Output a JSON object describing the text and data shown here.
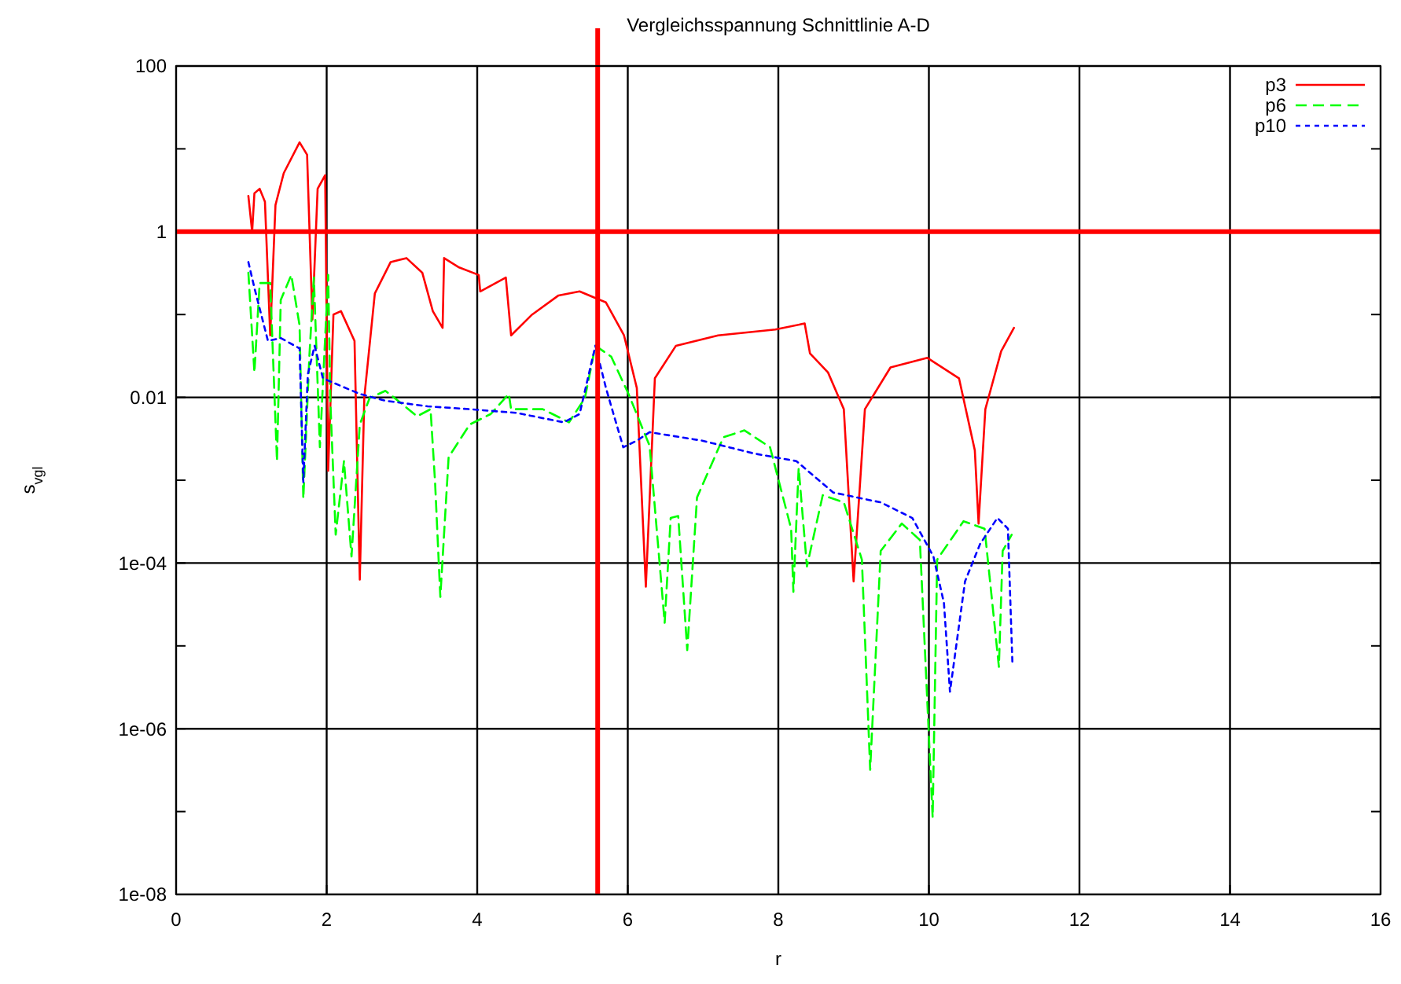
{
  "chart_data": {
    "type": "line",
    "title": "Vergleichsspannung Schnittlinie A-D",
    "xlabel": "r",
    "ylabel": "s$_{vgl}$",
    "log": "y",
    "grid": true,
    "legend": "top right",
    "xlim": [
      0,
      16
    ],
    "xticks": [
      0,
      2,
      4,
      6,
      8,
      10,
      12,
      14,
      16
    ],
    "ylim": [
      1e-08,
      100
    ],
    "yticks": [
      100,
      {
        "value": 10,
        "label": null
      },
      1,
      {
        "value": 0.1,
        "label": null
      },
      0.01,
      {
        "value": 0.001,
        "label": null
      },
      {
        "value": 0.0001,
        "label": "1e-04"
      },
      {
        "value": 1e-05,
        "label": null
      },
      {
        "value": 1e-06,
        "label": "1e-06"
      },
      {
        "value": 1e-07,
        "label": null
      },
      {
        "value": 1e-08,
        "label": "1e-08"
      }
    ],
    "ref_lines": [
      {
        "axis": "y",
        "value": 1,
        "color": "#ff0000"
      },
      {
        "axis": "x",
        "value": 5.6,
        "color": "#ff0000"
      }
    ],
    "series": [
      {
        "name": "p3",
        "color": "#ff0000",
        "line_style": "solid",
        "x": [
          0.96,
          1.01,
          1.04,
          1.11,
          1.18,
          1.25,
          1.32,
          1.43,
          1.64,
          1.74,
          1.81,
          1.88,
          1.98,
          2.02,
          2.09,
          2.19,
          2.37,
          2.44,
          2.5,
          2.64,
          2.85,
          3.06,
          3.27,
          3.41,
          3.54,
          3.56,
          3.76,
          4.02,
          4.04,
          4.38,
          4.45,
          4.73,
          5.08,
          5.36,
          5.71,
          5.95,
          6.12,
          6.24,
          6.36,
          6.64,
          7.2,
          7.96,
          8.35,
          8.42,
          8.66,
          8.87,
          9.0,
          9.15,
          9.49,
          9.98,
          10.4,
          10.61,
          10.66,
          10.75,
          10.96,
          11.13
        ],
        "values": [
          2.7,
          1.0,
          2.9,
          3.3,
          2.3,
          0.056,
          2.1,
          5.1,
          12,
          8.5,
          0.087,
          3.3,
          4.8,
          0.0013,
          0.1,
          0.11,
          0.048,
          6.3e-05,
          0.01,
          0.18,
          0.43,
          0.48,
          0.32,
          0.11,
          0.069,
          0.48,
          0.37,
          0.3,
          0.19,
          0.28,
          0.056,
          0.1,
          0.17,
          0.19,
          0.14,
          0.056,
          0.013,
          5.2e-05,
          0.017,
          0.042,
          0.056,
          0.066,
          0.078,
          0.034,
          0.02,
          0.0072,
          6e-05,
          0.0072,
          0.023,
          0.03,
          0.017,
          0.0023,
          0.0003,
          0.0072,
          0.036,
          0.069
        ]
      },
      {
        "name": "p6",
        "color": "#00ff00",
        "line_style": "dashed",
        "x": [
          0.96,
          1.04,
          1.11,
          1.25,
          1.34,
          1.39,
          1.53,
          1.64,
          1.69,
          1.77,
          1.83,
          1.91,
          2.02,
          2.05,
          2.12,
          2.23,
          2.33,
          2.44,
          2.57,
          2.78,
          2.99,
          3.2,
          3.38,
          3.44,
          3.51,
          3.62,
          3.9,
          4.18,
          4.42,
          4.45,
          4.87,
          5.22,
          5.43,
          5.57,
          5.78,
          6.01,
          6.29,
          6.49,
          6.57,
          6.67,
          6.79,
          6.92,
          7.27,
          7.55,
          7.89,
          8.17,
          8.2,
          8.27,
          8.38,
          8.59,
          8.87,
          9.11,
          9.22,
          9.36,
          9.64,
          9.88,
          10.05,
          10.11,
          10.46,
          10.74,
          10.93,
          10.98,
          11.1
        ],
        "values": [
          0.32,
          0.02,
          0.24,
          0.24,
          0.0017,
          0.15,
          0.3,
          0.074,
          0.0006,
          0.031,
          0.28,
          0.0025,
          0.3,
          0.0085,
          0.00022,
          0.0017,
          0.00012,
          0.0047,
          0.0098,
          0.012,
          0.0085,
          0.0059,
          0.0072,
          0.00095,
          3.9e-05,
          0.0019,
          0.0047,
          0.0063,
          0.011,
          0.0072,
          0.0072,
          0.005,
          0.0098,
          0.042,
          0.031,
          0.011,
          0.0026,
          1.9e-05,
          0.00035,
          0.00037,
          8.9e-06,
          0.00062,
          0.0033,
          0.004,
          0.0025,
          0.00026,
          4.5e-05,
          0.0014,
          9.1e-05,
          0.00066,
          0.00054,
          0.00011,
          3.2e-07,
          0.00014,
          0.0003,
          0.00019,
          8.5e-08,
          0.00011,
          0.00032,
          0.00026,
          5.6e-06,
          0.00014,
          0.00022
        ]
      },
      {
        "name": "p10",
        "color": "#0000ff",
        "line_style": "dotted",
        "x": [
          0.96,
          1.04,
          1.22,
          1.39,
          1.64,
          1.69,
          1.75,
          1.84,
          1.95,
          2.09,
          2.44,
          2.78,
          3.34,
          3.9,
          4.52,
          5.15,
          5.36,
          5.57,
          5.71,
          5.81,
          5.94,
          6.12,
          6.29,
          6.99,
          7.68,
          8.24,
          8.73,
          9.36,
          9.78,
          10.06,
          10.2,
          10.28,
          10.48,
          10.68,
          10.91,
          11.05,
          11.11
        ],
        "values": [
          0.43,
          0.21,
          0.048,
          0.052,
          0.039,
          0.00095,
          0.019,
          0.042,
          0.017,
          0.015,
          0.011,
          0.0091,
          0.0078,
          0.0072,
          0.0065,
          0.005,
          0.0063,
          0.042,
          0.013,
          0.0063,
          0.0025,
          0.003,
          0.0038,
          0.003,
          0.0021,
          0.0017,
          0.00071,
          0.00054,
          0.00035,
          0.00012,
          3.3e-05,
          2.8e-06,
          6e-05,
          0.00017,
          0.00035,
          0.00026,
          6e-06
        ]
      }
    ]
  }
}
